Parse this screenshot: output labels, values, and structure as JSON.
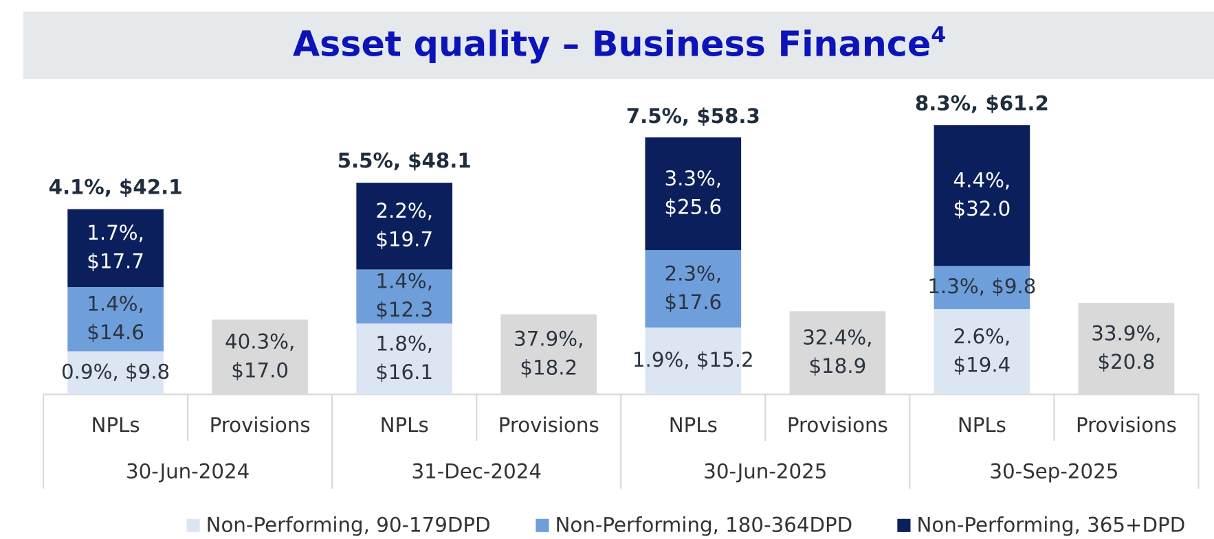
{
  "chart_data": {
    "type": "stacked_bar",
    "title": "Asset quality – Business Finance",
    "title_note": "4",
    "groups": [
      "30-Jun-2024",
      "31-Dec-2024",
      "30-Jun-2025",
      "30-Sep-2025"
    ],
    "categories": [
      "NPLs",
      "Provisions",
      "NPLs",
      "Provisions",
      "NPLs",
      "Provisions",
      "NPLs",
      "Provisions"
    ],
    "series": [
      {
        "name": "Non-Performing, 90-179DPD",
        "color": "#dce6f2",
        "values": [
          9.8,
          null,
          16.1,
          null,
          15.2,
          null,
          19.4,
          null
        ],
        "value_labels": [
          [
            "0.9%, $9.8"
          ],
          null,
          [
            "1.8%,",
            "$16.1"
          ],
          null,
          [
            "1.9%, $15.2"
          ],
          null,
          [
            "2.6%,",
            "$19.4"
          ],
          null
        ]
      },
      {
        "name": "Non-Performing, 180-364DPD",
        "color": "#6f9fdb",
        "values": [
          14.6,
          null,
          12.3,
          null,
          17.6,
          null,
          9.8,
          null
        ],
        "value_labels": [
          [
            "1.4%,",
            "$14.6"
          ],
          null,
          [
            "1.4%,",
            "$12.3"
          ],
          null,
          [
            "2.3%,",
            "$17.6"
          ],
          null,
          [
            "1.3%, $9.8"
          ],
          null
        ]
      },
      {
        "name": "Non-Performing, 365+DPD",
        "color": "#0b1f5c",
        "values": [
          17.7,
          null,
          19.7,
          null,
          25.6,
          null,
          32.0,
          null
        ],
        "value_labels": [
          [
            "1.7%,",
            "$17.7"
          ],
          null,
          [
            "2.2%,",
            "$19.7"
          ],
          null,
          [
            "3.3%,",
            "$25.6"
          ],
          null,
          [
            "4.4%,",
            "$32.0"
          ],
          null
        ]
      },
      {
        "color": "#d9d9d9",
        "values": [
          null,
          17.0,
          null,
          18.2,
          null,
          18.9,
          null,
          20.8
        ],
        "value_labels": [
          null,
          [
            "40.3%,",
            "$17.0"
          ],
          null,
          [
            "37.9%,",
            "$18.2"
          ],
          null,
          [
            "32.4%,",
            "$18.9"
          ],
          null,
          [
            "33.9%,",
            "$20.8"
          ]
        ]
      }
    ],
    "totals": {
      "values": [
        42.1,
        null,
        48.1,
        null,
        58.3,
        null,
        61.2,
        null
      ],
      "value_labels": [
        "4.1%, $42.1",
        null,
        "5.5%,  $48.1",
        null,
        "7.5%,  $58.3",
        null,
        "8.3%, $61.2",
        null
      ]
    },
    "legend": "bottom"
  }
}
